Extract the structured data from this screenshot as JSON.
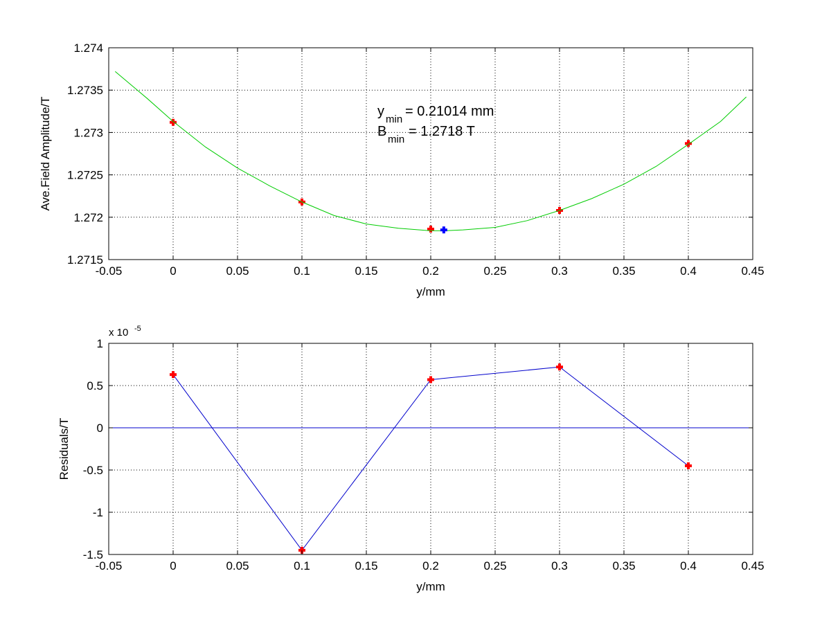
{
  "chart_data": [
    {
      "type": "scatter",
      "xlabel": "y/mm",
      "ylabel": "Ave.Field Amplitude/T",
      "xlim": [
        -0.05,
        0.45
      ],
      "ylim": [
        1.2715,
        1.274
      ],
      "xticks": [
        -0.05,
        0,
        0.05,
        0.1,
        0.15,
        0.2,
        0.25,
        0.3,
        0.35,
        0.4,
        0.45
      ],
      "xtick_labels": [
        "-0.05",
        "0",
        "0.05",
        "0.1",
        "0.15",
        "0.2",
        "0.25",
        "0.3",
        "0.35",
        "0.4",
        "0.45"
      ],
      "yticks": [
        1.2715,
        1.272,
        1.2725,
        1.273,
        1.2735,
        1.274
      ],
      "ytick_labels": [
        "1.2715",
        "1.272",
        "1.2725",
        "1.273",
        "1.2735",
        "1.274"
      ],
      "grid": true,
      "series": [
        {
          "kind": "markers",
          "color": "#ff0000",
          "x": [
            0,
            0.1,
            0.2,
            0.3,
            0.4
          ],
          "y": [
            1.27312,
            1.27218,
            1.27186,
            1.27208,
            1.27287
          ]
        },
        {
          "kind": "curve",
          "color": "#00cc00",
          "x": [
            -0.045,
            -0.02,
            0,
            0.025,
            0.05,
            0.075,
            0.1,
            0.125,
            0.15,
            0.175,
            0.2,
            0.21014,
            0.225,
            0.25,
            0.275,
            0.3,
            0.325,
            0.35,
            0.375,
            0.4,
            0.425,
            0.445
          ],
          "y": [
            1.27372,
            1.2734,
            1.27313,
            1.27283,
            1.27258,
            1.27237,
            1.27218,
            1.27202,
            1.27192,
            1.27187,
            1.27184,
            1.27184,
            1.27185,
            1.27188,
            1.27196,
            1.27208,
            1.27222,
            1.27239,
            1.2726,
            1.27286,
            1.27313,
            1.27342
          ]
        },
        {
          "kind": "minimum",
          "color": "#0000ff",
          "x": [
            0.21014
          ],
          "y": [
            1.27185
          ]
        }
      ],
      "annotation": {
        "line1_main": "y",
        "line1_sub": "min",
        "line1_value": "= 0.21014 mm",
        "line2_main": "B",
        "line2_sub": "min",
        "line2_value": "= 1.2718 T"
      }
    },
    {
      "type": "line",
      "xlabel": "y/mm",
      "ylabel": "Residuals/T",
      "scale_base": "x 10",
      "scale_exp": "-5",
      "xlim": [
        -0.05,
        0.45
      ],
      "ylim": [
        -1.5,
        1
      ],
      "xticks": [
        -0.05,
        0,
        0.05,
        0.1,
        0.15,
        0.2,
        0.25,
        0.3,
        0.35,
        0.4,
        0.45
      ],
      "xtick_labels": [
        "-0.05",
        "0",
        "0.05",
        "0.1",
        "0.15",
        "0.2",
        "0.25",
        "0.3",
        "0.35",
        "0.4",
        "0.45"
      ],
      "yticks": [
        -1.5,
        -1,
        -0.5,
        0,
        0.5,
        1
      ],
      "ytick_labels": [
        "-1.5",
        "-1",
        "-0.5",
        "0",
        "0.5",
        "1"
      ],
      "grid": true,
      "zero_line": true,
      "series": [
        {
          "kind": "line-markers",
          "line_color": "#0000cc",
          "marker_color": "#ff0000",
          "x": [
            0,
            0.1,
            0.2,
            0.3,
            0.4
          ],
          "y": [
            0.63,
            -1.45,
            0.57,
            0.72,
            -0.45
          ]
        }
      ]
    }
  ]
}
